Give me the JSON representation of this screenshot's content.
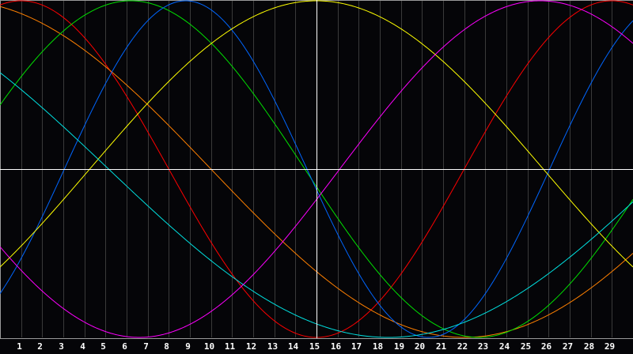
{
  "chart_data": {
    "type": "line",
    "title": "",
    "xlabel": "",
    "ylabel": "",
    "xlim": [
      0,
      30
    ],
    "ylim": [
      -1,
      1
    ],
    "grid": true,
    "marker_day": 15,
    "x_ticks": [
      "1",
      "2",
      "3",
      "4",
      "5",
      "6",
      "7",
      "8",
      "9",
      "10",
      "11",
      "12",
      "13",
      "14",
      "15",
      "16",
      "17",
      "18",
      "19",
      "20",
      "21",
      "22",
      "23",
      "24",
      "25",
      "26",
      "27",
      "28",
      "29"
    ],
    "series": [
      {
        "color": "#ff0000",
        "shape": "sine",
        "period_days": 28,
        "peak_day": 1
      },
      {
        "color": "#ff8000",
        "shape": "sine",
        "period_days": 48,
        "peak_day": -2
      },
      {
        "color": "#00e000",
        "shape": "sine",
        "period_days": 33,
        "peak_day": 6.2
      },
      {
        "color": "#0066ff",
        "shape": "sine",
        "period_days": 23,
        "peak_day": 8.8
      },
      {
        "color": "#ffff00",
        "shape": "sine",
        "period_days": 43,
        "peak_day": 15
      },
      {
        "color": "#00e0e0",
        "shape": "sine",
        "period_days": 53,
        "peak_day": -8.1
      },
      {
        "color": "#ff00ff",
        "shape": "sine",
        "period_days": 38,
        "peak_day": 25.6
      }
    ]
  },
  "colors": {
    "background": "#050508",
    "grid": "#3a3a3a",
    "axis": "#9a9a9a",
    "crosshair": "#ffffff"
  }
}
